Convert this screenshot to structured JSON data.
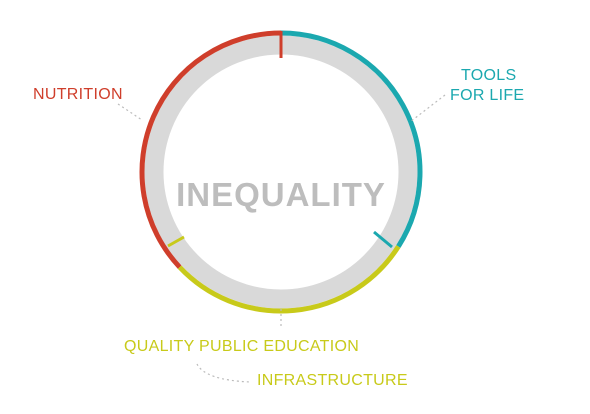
{
  "diagram": {
    "center_label": "INEQUALITY",
    "segments": [
      {
        "key": "tools",
        "lines": [
          "TOOLS",
          "FOR LIFE"
        ],
        "color": "#1BA8AF",
        "share": 0.34
      },
      {
        "key": "education",
        "lines": [
          "QUALITY PUBLIC EDUCATION"
        ],
        "color": "#C8CA1A",
        "share": 0.29
      },
      {
        "key": "nutrition",
        "lines": [
          "NUTRITION"
        ],
        "color": "#CF3E2B",
        "share": 0.37
      }
    ],
    "extra_label": {
      "text": "INFRASTRUCTURE",
      "color": "#C8CA1A"
    },
    "ring_color": "#D9D9D9",
    "center_color": "#BDBDBD",
    "leader_color": "#BBBBBB"
  }
}
